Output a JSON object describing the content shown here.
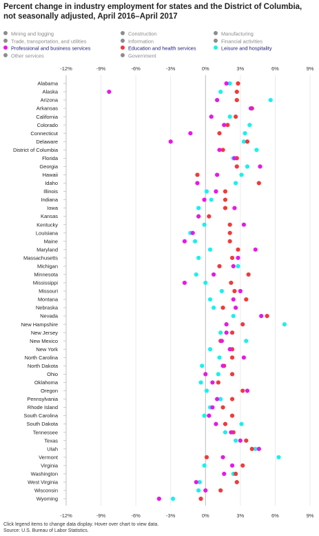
{
  "title": "Percent change in industry employment for states and the District of Columbia, not seasonally adjusted, April 2016–April 2017",
  "legend": [
    {
      "label": "Mining and logging",
      "color": "#8c8c8c",
      "active": false
    },
    {
      "label": "Construction",
      "color": "#8c8c8c",
      "active": false
    },
    {
      "label": "Manufacturing",
      "color": "#8c8c8c",
      "active": false
    },
    {
      "label": "Trade, transportation, and utilities",
      "color": "#8c8c8c",
      "active": false
    },
    {
      "label": "Information",
      "color": "#8c8c8c",
      "active": false
    },
    {
      "label": "Financial activities",
      "color": "#8c8c8c",
      "active": false
    },
    {
      "label": "Professional and business services",
      "color": "#e619e6",
      "active": true
    },
    {
      "label": "Education and health services",
      "color": "#ef3b3b",
      "active": true
    },
    {
      "label": "Leisure and hospitality",
      "color": "#1af0ee",
      "active": true
    },
    {
      "label": "Other services",
      "color": "#8c8c8c",
      "active": false
    },
    {
      "label": "Government",
      "color": "#8c8c8c",
      "active": false
    }
  ],
  "footer": {
    "note": "Click legend items to change data display. Hover over chart to view data.",
    "source": "Source: U.S. Bureau of Labor Statistics."
  },
  "chart_data": {
    "type": "scatter",
    "orientation": "horizontal dot plot",
    "xlim": [
      -12,
      9
    ],
    "x_ticks": [
      "-12%",
      "-9%",
      "-6%",
      "-3%",
      "0%",
      "3%",
      "6%",
      "9%"
    ],
    "x_tick_values": [
      -12,
      -9,
      -6,
      -3,
      0,
      3,
      6,
      9
    ],
    "categories": [
      "Alabama",
      "Alaska",
      "Arizona",
      "Arkansas",
      "California",
      "Colorado",
      "Connecticut",
      "Delaware",
      "District of Columbia",
      "Florida",
      "Georgia",
      "Hawaii",
      "Idaho",
      "Illinois",
      "Indiana",
      "Iowa",
      "Kansas",
      "Kentucky",
      "Louisiana",
      "Maine",
      "Maryland",
      "Massachusetts",
      "Michigan",
      "Minnesota",
      "Mississippi",
      "Missouri",
      "Montana",
      "Nebraska",
      "Nevada",
      "New Hampshire",
      "New Jersey",
      "New Mexico",
      "New York",
      "North Carolina",
      "North Dakota",
      "Ohio",
      "Oklahoma",
      "Oregon",
      "Pennsylvania",
      "Rhode Island",
      "South Carolina",
      "South Dakota",
      "Tennessee",
      "Texas",
      "Utah",
      "Vermont",
      "Virginia",
      "Washington",
      "West Virginia",
      "Wisconsin",
      "Wyoming"
    ],
    "series": [
      {
        "name": "Professional and business services",
        "color": "#e619e6",
        "values": [
          1.8,
          -8.3,
          1.0,
          3.9,
          0.5,
          1.6,
          -1.3,
          -3.0,
          1.2,
          2.5,
          4.7,
          1.0,
          -0.7,
          0.9,
          -0.1,
          2.5,
          -0.6,
          3.3,
          -1.1,
          -1.8,
          4.3,
          2.8,
          2.4,
          0.7,
          -1.8,
          3.0,
          2.4,
          2.6,
          4.8,
          1.8,
          1.8,
          1.4,
          2.1,
          3.3,
          1.5,
          0.0,
          0.6,
          3.6,
          1.0,
          0.6,
          0.3,
          0.9,
          2.2,
          3.0,
          4.6,
          1.5,
          2.3,
          1.6,
          -0.8,
          0.0,
          -4.0
        ]
      },
      {
        "name": "Education and health services",
        "color": "#ef3b3b",
        "values": [
          2.8,
          2.7,
          2.7,
          4.0,
          2.6,
          1.9,
          1.2,
          3.6,
          1.5,
          2.7,
          2.7,
          -0.7,
          4.6,
          1.7,
          1.7,
          1.7,
          0.3,
          2.1,
          2.1,
          2.1,
          2.8,
          2.3,
          1.2,
          3.7,
          2.2,
          2.5,
          3.5,
          1.5,
          5.3,
          3.2,
          2.3,
          1.3,
          2.3,
          2.3,
          1.6,
          2.3,
          1.1,
          3.2,
          2.3,
          1.5,
          2.3,
          1.7,
          2.4,
          3.5,
          4.0,
          0.1,
          3.2,
          2.6,
          2.7,
          1.3,
          -0.4
        ]
      },
      {
        "name": "Leisure and hospitality",
        "color": "#1af0ee",
        "values": [
          2.1,
          1.3,
          5.6,
          4.0,
          2.1,
          3.8,
          3.4,
          3.3,
          4.4,
          2.4,
          3.6,
          3.1,
          2.6,
          0.1,
          0.5,
          -0.6,
          -0.6,
          -0.1,
          -1.3,
          -0.9,
          0.4,
          -0.6,
          2.8,
          -0.8,
          0.0,
          1.4,
          0.4,
          0.7,
          2.4,
          6.8,
          1.3,
          3.5,
          0.4,
          1.2,
          -0.3,
          1.1,
          -0.4,
          0.1,
          1.3,
          0.4,
          -0.1,
          3.1,
          1.7,
          2.6,
          4.3,
          6.3,
          -0.1,
          2.4,
          -0.5,
          -0.6,
          -2.8
        ]
      }
    ],
    "grid": "vertical lines at tick values",
    "legend_position": "top"
  }
}
